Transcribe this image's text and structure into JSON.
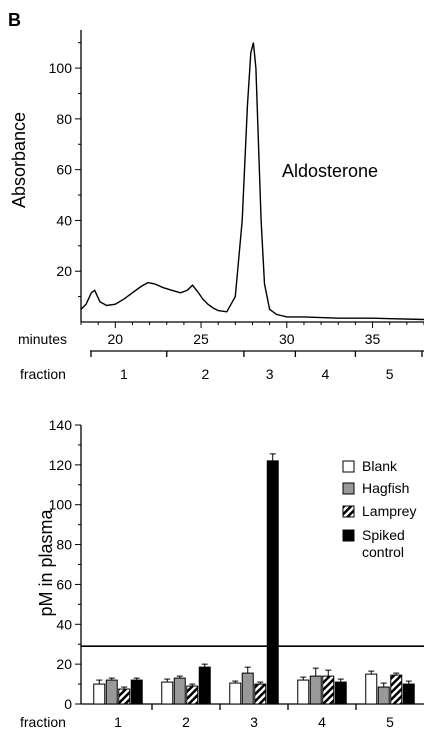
{
  "panel_label": "B",
  "chart_data": [
    {
      "type": "line",
      "ylabel": "Absorbance",
      "xlabel": "minutes",
      "xlim": [
        18,
        38
      ],
      "ylim": [
        0,
        115
      ],
      "yticks": [
        20,
        40,
        60,
        80,
        100
      ],
      "xticks": [
        20,
        25,
        30,
        35
      ],
      "annotation": "Aldosterone",
      "secondary_axis": {
        "label": "fraction",
        "boundaries": [
          18,
          23,
          27.5,
          30.5,
          34,
          38
        ],
        "labels": [
          "1",
          "2",
          "3",
          "4",
          "5"
        ]
      },
      "series": [
        {
          "x": [
            18,
            18.3,
            18.6,
            18.8,
            19.1,
            19.5,
            20.0,
            20.5,
            21.0,
            21.5,
            21.9,
            22.3,
            22.8,
            23.3,
            23.8,
            24.2,
            24.5,
            24.8,
            25.1,
            25.4,
            25.7,
            26.0,
            26.5,
            27.0,
            27.4,
            27.7,
            27.9,
            28.05,
            28.2,
            28.35,
            28.5,
            28.7,
            29.0,
            29.4,
            30.0,
            31.0,
            33.0,
            35.0,
            38.0
          ],
          "y": [
            5,
            7,
            11.5,
            12.5,
            8,
            6.5,
            7,
            9,
            11.5,
            14,
            15.5,
            15,
            13.5,
            12.5,
            11.5,
            12.5,
            14.5,
            12,
            9,
            7,
            5.5,
            4.5,
            4,
            10,
            40,
            85,
            106,
            110,
            100,
            70,
            40,
            15,
            5,
            3,
            2,
            2,
            1.5,
            1.5,
            1
          ]
        }
      ]
    },
    {
      "type": "bar",
      "ylabel": "pM in plasma",
      "xlabel": "fraction",
      "categories": [
        "1",
        "2",
        "3",
        "4",
        "5"
      ],
      "ylim": [
        0,
        140
      ],
      "yticks": [
        0,
        20,
        40,
        60,
        80,
        100,
        120,
        140
      ],
      "threshold": 29,
      "series": [
        {
          "name": "Blank",
          "fill": "#ffffff",
          "pattern": "none",
          "values": [
            10,
            11,
            10.5,
            12,
            15
          ],
          "errors": [
            2,
            1.5,
            1,
            1.5,
            1.5
          ]
        },
        {
          "name": "Hagfish",
          "fill": "#999999",
          "pattern": "none",
          "values": [
            12,
            13,
            15.5,
            14,
            8.5
          ],
          "errors": [
            1,
            1,
            3,
            4,
            2
          ]
        },
        {
          "name": "Lamprey",
          "fill": "#ffffff",
          "pattern": "hatch",
          "values": [
            7.5,
            9,
            10,
            14,
            14.5
          ],
          "errors": [
            1,
            1,
            1,
            3,
            1
          ]
        },
        {
          "name": "Spiked control",
          "fill": "#000000",
          "pattern": "none",
          "values": [
            12,
            18.5,
            122,
            11,
            10
          ],
          "errors": [
            1,
            1.5,
            3.5,
            1.5,
            1.5
          ]
        }
      ],
      "legend": [
        {
          "lines": [
            "Blank"
          ]
        },
        {
          "lines": [
            "Hagfish"
          ]
        },
        {
          "lines": [
            "Lamprey"
          ]
        },
        {
          "lines": [
            "Spiked",
            "control"
          ]
        }
      ]
    }
  ]
}
